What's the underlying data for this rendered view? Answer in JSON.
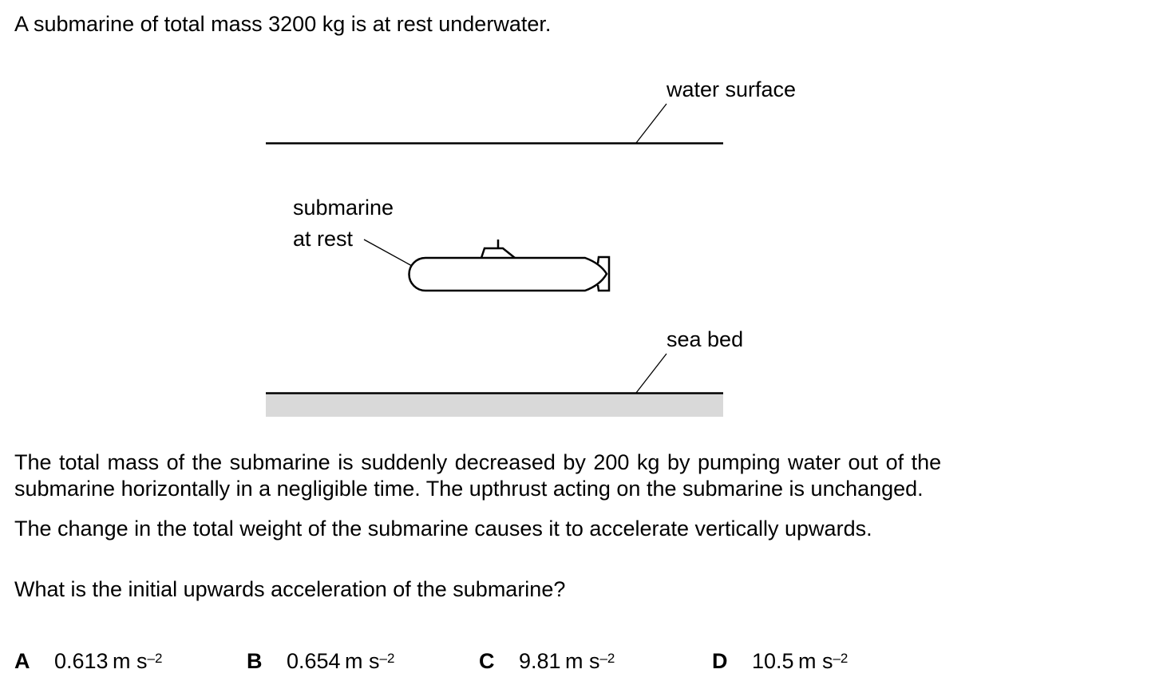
{
  "intro": "A submarine of total mass 3200 kg is at rest underwater.",
  "diagram": {
    "label_water_surface": "water surface",
    "label_submarine_1": "submarine",
    "label_submarine_2": "at rest",
    "label_sea_bed": "sea bed",
    "sea_bed_color": "#d9d9d9"
  },
  "paragraphs": [
    "The total mass of the submarine is suddenly decreased by 200 kg by pumping water out of the",
    "submarine horizontally in a negligible time. The upthrust acting on the submarine is unchanged.",
    "The change in the total weight of the submarine causes it to accelerate vertically upwards.",
    "What is the initial upwards acceleration of the submarine?"
  ],
  "options": [
    {
      "letter": "A",
      "value": "0.613",
      "unit": "m s",
      "exp": "–2"
    },
    {
      "letter": "B",
      "value": "0.654",
      "unit": "m s",
      "exp": "–2"
    },
    {
      "letter": "C",
      "value": "9.81",
      "unit": "m s",
      "exp": "–2"
    },
    {
      "letter": "D",
      "value": "10.5",
      "unit": "m s",
      "exp": "–2"
    }
  ]
}
